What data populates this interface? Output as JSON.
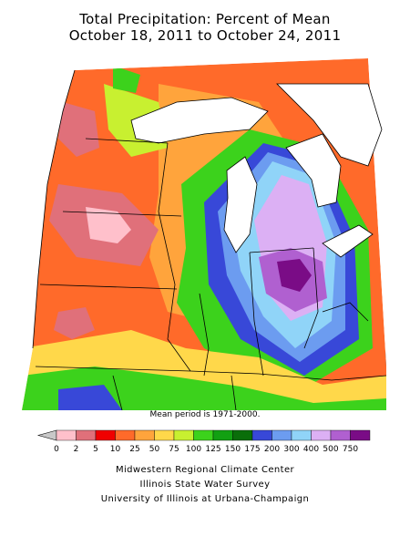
{
  "title_line1": "Total Precipitation: Percent of Mean",
  "title_line2": "October 18, 2011 to October 24, 2011",
  "mean_period_note": "Mean period is 1971-2000.",
  "legend": {
    "bins": [
      {
        "label": "0",
        "color": "#ffc0cb"
      },
      {
        "label": "2",
        "color": "#e0707a"
      },
      {
        "label": "5",
        "color": "#f00000"
      },
      {
        "label": "10",
        "color": "#ff6a2a"
      },
      {
        "label": "25",
        "color": "#ffa43c"
      },
      {
        "label": "50",
        "color": "#ffd84a"
      },
      {
        "label": "75",
        "color": "#c8f030"
      },
      {
        "label": "100",
        "color": "#3cd21c"
      },
      {
        "label": "125",
        "color": "#12a012"
      },
      {
        "label": "150",
        "color": "#0a6e0a"
      },
      {
        "label": "175",
        "color": "#3848d8"
      },
      {
        "label": "200",
        "color": "#6c9cf0"
      },
      {
        "label": "300",
        "color": "#90d4f8"
      },
      {
        "label": "400",
        "color": "#dcb0f4"
      },
      {
        "label": "500",
        "color": "#b060d0"
      },
      {
        "label": "750",
        "color": "#7a0c86"
      }
    ],
    "lower_arrow_color": "#c8c8c8"
  },
  "credits": {
    "line1": "Midwestern Regional Climate Center",
    "line2": "Illinois State Water Survey",
    "line3": "University of Illinois at Urbana-Champaign"
  }
}
